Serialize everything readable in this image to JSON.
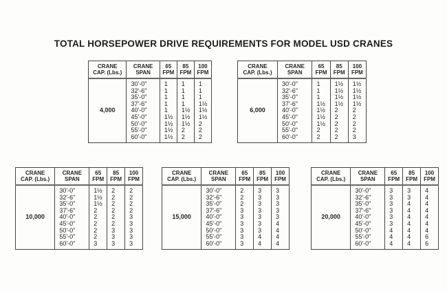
{
  "title": "TOTAL HORSEPOWER DRIVE REQUIREMENTS FOR MODEL USD CRANES",
  "headers": {
    "capacity": [
      "CRANE",
      "CAP. (Lbs.)"
    ],
    "span": [
      "CRANE",
      "SPAN"
    ],
    "fpm65": [
      "65",
      "FPM"
    ],
    "fpm85": [
      "85",
      "FPM"
    ],
    "fpm100": [
      "100",
      "FPM"
    ]
  },
  "spans": [
    "30'-0\"",
    "32'-6\"",
    "35'-0\"",
    "37'-6\"",
    "40'-0\"",
    "45'-0\"",
    "50'-0\"",
    "55'-0\"",
    "60'-0\""
  ],
  "tables": [
    {
      "capacity": "4,000",
      "fpm65": [
        "1",
        "1",
        "1",
        "1",
        "1",
        "1½",
        "1½",
        "1½",
        "1½"
      ],
      "fpm85": [
        "1",
        "1",
        "1",
        "1",
        "1½",
        "1½",
        "1½",
        "2",
        "2"
      ],
      "fpm100": [
        "1",
        "1",
        "1",
        "1½",
        "1½",
        "1½",
        "2",
        "2",
        "2"
      ]
    },
    {
      "capacity": "6,000",
      "fpm65": [
        "1",
        "1",
        "1",
        "1½",
        "1½",
        "1½",
        "1½",
        "2",
        "2"
      ],
      "fpm85": [
        "1½",
        "1½",
        "1½",
        "1½",
        "2",
        "2",
        "2",
        "2",
        "2"
      ],
      "fpm100": [
        "1½",
        "1½",
        "1½",
        "1½",
        "2",
        "2",
        "2",
        "2",
        "3"
      ]
    },
    {
      "capacity": "10,000",
      "fpm65": [
        "1½",
        "1½",
        "1½",
        "2",
        "2",
        "2",
        "2",
        "2",
        "3"
      ],
      "fpm85": [
        "2",
        "2",
        "2",
        "2",
        "2",
        "2",
        "3",
        "3",
        "3"
      ],
      "fpm100": [
        "2",
        "2",
        "2",
        "2",
        "3",
        "3",
        "3",
        "3",
        "3"
      ]
    },
    {
      "capacity": "15,000",
      "fpm65": [
        "2",
        "2",
        "2",
        "3",
        "3",
        "3",
        "3",
        "3",
        "3"
      ],
      "fpm85": [
        "3",
        "3",
        "3",
        "3",
        "3",
        "3",
        "3",
        "4",
        "4"
      ],
      "fpm100": [
        "3",
        "3",
        "3",
        "3",
        "3",
        "4",
        "4",
        "4",
        "4"
      ]
    },
    {
      "capacity": "20,000",
      "fpm65": [
        "3",
        "3",
        "3",
        "3",
        "3",
        "3",
        "4",
        "4",
        "4"
      ],
      "fpm85": [
        "3",
        "3",
        "4",
        "4",
        "4",
        "4",
        "4",
        "4",
        "4"
      ],
      "fpm100": [
        "4",
        "4",
        "4",
        "4",
        "4",
        "4",
        "4",
        "6",
        "6"
      ]
    }
  ]
}
